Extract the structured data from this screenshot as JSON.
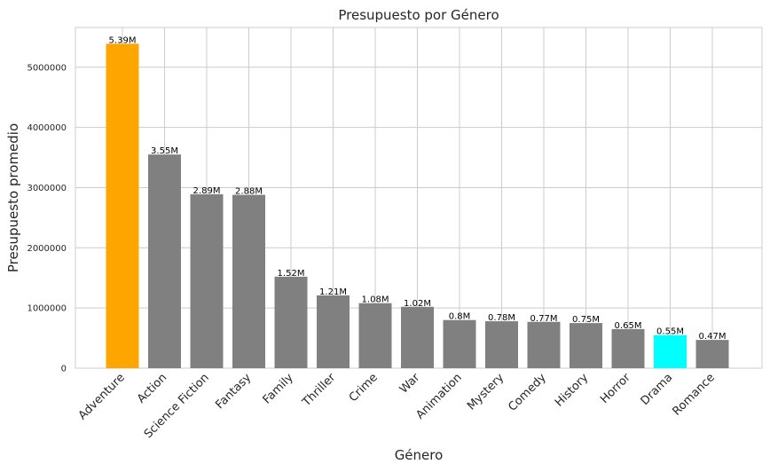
{
  "chart_data": {
    "type": "bar",
    "title": "Presupuesto por Género",
    "xlabel": "Género",
    "ylabel": "Presupuesto promedio",
    "categories": [
      "Adventure",
      "Action",
      "Science Fiction",
      "Fantasy",
      "Family",
      "Thriller",
      "Crime",
      "War",
      "Animation",
      "Mystery",
      "Comedy",
      "History",
      "Horror",
      "Drama",
      "Romance"
    ],
    "values": [
      5390000,
      3550000,
      2890000,
      2880000,
      1520000,
      1210000,
      1080000,
      1020000,
      800000,
      780000,
      770000,
      750000,
      650000,
      550000,
      470000
    ],
    "data_labels": [
      "5.39M",
      "3.55M",
      "2.89M",
      "2.88M",
      "1.52M",
      "1.21M",
      "1.08M",
      "1.02M",
      "0.8M",
      "0.78M",
      "0.77M",
      "0.75M",
      "0.65M",
      "0.55M",
      "0.47M"
    ],
    "colors": [
      "#FFA500",
      "#808080",
      "#808080",
      "#808080",
      "#808080",
      "#808080",
      "#808080",
      "#808080",
      "#808080",
      "#808080",
      "#808080",
      "#808080",
      "#808080",
      "#00FFFF",
      "#808080"
    ],
    "yticks": [
      0,
      1000000,
      2000000,
      3000000,
      4000000,
      5000000
    ],
    "ytick_labels": [
      "0",
      "1000000",
      "2000000",
      "3000000",
      "4000000",
      "5000000"
    ],
    "ylim": [
      0,
      5660000
    ],
    "grid": true,
    "legend": "none"
  }
}
